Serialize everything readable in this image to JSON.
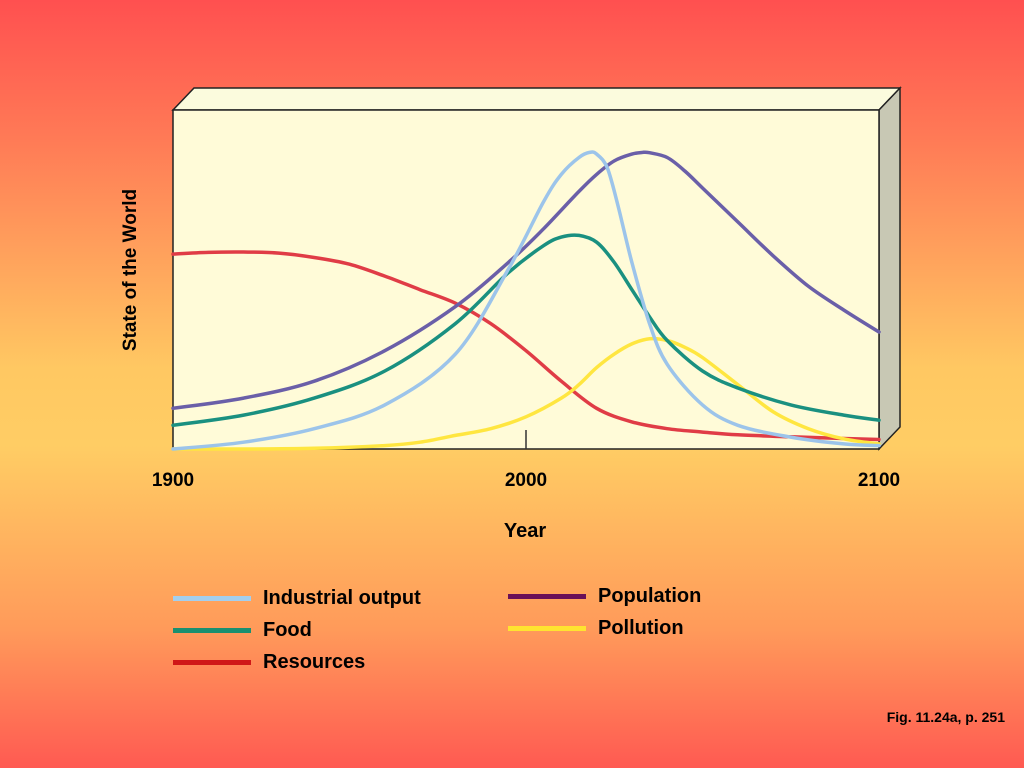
{
  "chart_data": {
    "type": "line",
    "title": "",
    "xlabel": "Year",
    "ylabel": "State of the World",
    "xlim": [
      1900,
      2100
    ],
    "ylim": [
      0,
      100
    ],
    "x_ticks": [
      "1900",
      "2000",
      "2100"
    ],
    "grid": false,
    "legend_position": "bottom",
    "series": [
      {
        "name": "Industrial output",
        "color": "#9cc4ea",
        "x": [
          1900,
          1920,
          1940,
          1960,
          1980,
          1995,
          2005,
          2010,
          2015,
          2018,
          2020,
          2023,
          2026,
          2030,
          2035,
          2040,
          2050,
          2060,
          2075,
          2090,
          2100
        ],
        "y": [
          0,
          2,
          6,
          13,
          28,
          53,
          73,
          81,
          86,
          87.5,
          87,
          83,
          72,
          55,
          37,
          25,
          13,
          7,
          3.5,
          1.5,
          1
        ]
      },
      {
        "name": "Food",
        "color": "#1a9080",
        "x": [
          1900,
          1920,
          1940,
          1960,
          1980,
          1995,
          2005,
          2010,
          2015,
          2020,
          2025,
          2030,
          2035,
          2040,
          2050,
          2060,
          2075,
          2090,
          2100
        ],
        "y": [
          7,
          10,
          15,
          23,
          37,
          52,
          60,
          62.5,
          63,
          61,
          55,
          47,
          39,
          32,
          23,
          18,
          13,
          10,
          8.5
        ]
      },
      {
        "name": "Resources",
        "color": "#e03c46",
        "x": [
          1900,
          1910,
          1920,
          1930,
          1940,
          1950,
          1960,
          1970,
          1980,
          1990,
          2000,
          2010,
          2020,
          2030,
          2040,
          2050,
          2060,
          2075,
          2090,
          2100
        ],
        "y": [
          57.5,
          58,
          58.1,
          57.8,
          56.5,
          54.5,
          51,
          47,
          43,
          37,
          29,
          20,
          12,
          8,
          6,
          5,
          4.2,
          3.6,
          3.1,
          2.8
        ]
      },
      {
        "name": "Population",
        "color": "#6a5fa8",
        "x": [
          1900,
          1920,
          1940,
          1960,
          1980,
          1995,
          2005,
          2015,
          2020,
          2025,
          2030,
          2033,
          2035,
          2040,
          2045,
          2050,
          2060,
          2070,
          2080,
          2090,
          2100
        ],
        "y": [
          12,
          15,
          20,
          29,
          42,
          55,
          65,
          76,
          81,
          85,
          87,
          87.5,
          87.4,
          86,
          82,
          77,
          67,
          57,
          48,
          41,
          34.5
        ]
      },
      {
        "name": "Pollution",
        "color": "#ffe640",
        "x": [
          1900,
          1920,
          1940,
          1960,
          1970,
          1980,
          1990,
          2000,
          2010,
          2015,
          2020,
          2025,
          2030,
          2035,
          2040,
          2045,
          2050,
          2060,
          2070,
          2080,
          2090,
          2100
        ],
        "y": [
          0,
          0,
          0.2,
          1,
          2,
          4,
          6,
          9.5,
          15,
          19,
          24,
          28,
          31,
          32.5,
          32,
          30,
          27,
          19,
          11,
          6,
          3,
          1.5
        ]
      }
    ]
  },
  "legend": [
    {
      "label": "Industrial output",
      "color": "#a4cfee"
    },
    {
      "label": "Food",
      "color": "#1a9070"
    },
    {
      "label": "Resources",
      "color": "#d01818"
    },
    {
      "label": "Population",
      "color": "#6a1058"
    },
    {
      "label": "Pollution",
      "color": "#ffe430"
    }
  ],
  "caption": "Fig. 11.24a, p. 251"
}
